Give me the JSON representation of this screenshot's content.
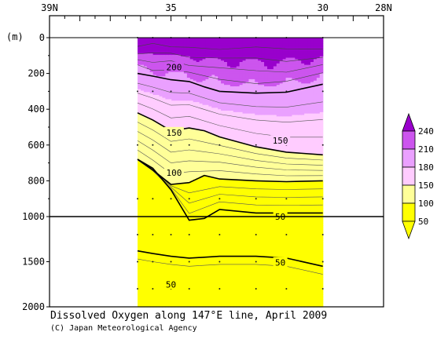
{
  "chart_data": {
    "type": "contour",
    "title": "Dissolved Oxygen along 147°E line, April 2009",
    "credit": "(C) Japan Meteorological Agency",
    "y_unit_label": "(m)",
    "x_axis": {
      "range_lat": [
        39,
        28
      ],
      "ticks": [
        {
          "lat": 39,
          "label": "39N"
        },
        {
          "lat": 35,
          "label": "35"
        },
        {
          "lat": 30,
          "label": "30"
        },
        {
          "lat": 28,
          "label": "28N"
        }
      ]
    },
    "y_axis": {
      "upper_range": [
        0,
        1000
      ],
      "lower_range": [
        1000,
        2000
      ],
      "ticks": [
        "0",
        "200",
        "400",
        "600",
        "800",
        "1000",
        "1500",
        "2000"
      ]
    },
    "data_extent_lat": [
      36.1,
      30.0
    ],
    "stations_lat": [
      36.1,
      35.6,
      35.0,
      34.4,
      33.4,
      32.2,
      31.2,
      30.0
    ],
    "levels": [
      50,
      100,
      150,
      180,
      200,
      210,
      240
    ],
    "color_bands": [
      {
        "min": 0,
        "max": 50,
        "color": "#ffff00"
      },
      {
        "min": 50,
        "max": 100,
        "color": "#ffff00"
      },
      {
        "min": 100,
        "max": 150,
        "color": "#ffff99"
      },
      {
        "min": 150,
        "max": 180,
        "color": "#ffccff"
      },
      {
        "min": 180,
        "max": 210,
        "color": "#eaa0ff"
      },
      {
        "min": 210,
        "max": 240,
        "color": "#cc55ee"
      },
      {
        "min": 240,
        "max": 300,
        "color": "#9900cc"
      }
    ],
    "legend": {
      "values": [
        "240",
        "210",
        "180",
        "150",
        "100",
        "50"
      ],
      "colors_top_to_bottom": [
        "#9900cc",
        "#cc55ee",
        "#eaa0ff",
        "#ffccff",
        "#ffff99",
        "#ffff00",
        "#ffff00"
      ]
    },
    "contour_labels": [
      {
        "text": "200",
        "lat": 34.9,
        "depth": 165
      },
      {
        "text": "150",
        "lat": 34.9,
        "depth": 530
      },
      {
        "text": "150",
        "lat": 31.4,
        "depth": 575
      },
      {
        "text": "100",
        "lat": 34.9,
        "depth": 755
      },
      {
        "text": "50",
        "lat": 31.4,
        "depth": 1000
      },
      {
        "text": "50",
        "lat": 31.4,
        "depth": 1510
      },
      {
        "text": "50",
        "lat": 35.0,
        "depth": 1750
      }
    ],
    "bold_contours": [
      {
        "value": 200,
        "points": [
          [
            36.1,
            200
          ],
          [
            35.6,
            215
          ],
          [
            35.0,
            235
          ],
          [
            34.4,
            245
          ],
          [
            33.9,
            275
          ],
          [
            33.4,
            300
          ],
          [
            32.2,
            310
          ],
          [
            31.2,
            305
          ],
          [
            30.0,
            260
          ]
        ]
      },
      {
        "value": 150,
        "points": [
          [
            36.1,
            420
          ],
          [
            35.6,
            460
          ],
          [
            35.0,
            520
          ],
          [
            34.4,
            505
          ],
          [
            33.9,
            520
          ],
          [
            33.4,
            555
          ],
          [
            32.2,
            610
          ],
          [
            31.2,
            640
          ],
          [
            30.0,
            655
          ]
        ]
      },
      {
        "value": 100,
        "points": [
          [
            36.1,
            680
          ],
          [
            35.6,
            740
          ],
          [
            35.0,
            820
          ],
          [
            34.4,
            810
          ],
          [
            33.9,
            770
          ],
          [
            33.4,
            790
          ],
          [
            32.2,
            800
          ],
          [
            31.2,
            805
          ],
          [
            30.0,
            800
          ]
        ]
      },
      {
        "value": 50,
        "points": [
          [
            36.1,
            680
          ],
          [
            35.6,
            730
          ],
          [
            35.0,
            850
          ],
          [
            34.4,
            1040
          ],
          [
            33.9,
            1020
          ],
          [
            33.4,
            960
          ],
          [
            32.2,
            980
          ],
          [
            31.2,
            980
          ],
          [
            30.0,
            980
          ]
        ]
      },
      {
        "value": 50,
        "points": [
          [
            36.1,
            1380
          ],
          [
            35.6,
            1410
          ],
          [
            35.0,
            1440
          ],
          [
            34.4,
            1460
          ],
          [
            33.9,
            1450
          ],
          [
            33.4,
            1440
          ],
          [
            32.2,
            1440
          ],
          [
            31.2,
            1460
          ],
          [
            30.0,
            1550
          ]
        ]
      }
    ]
  }
}
